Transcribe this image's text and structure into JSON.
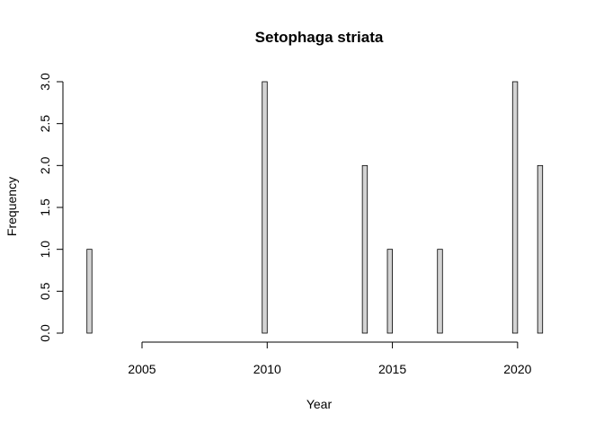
{
  "chart_data": {
    "type": "bar",
    "title": "Setophaga striata",
    "xlabel": "Year",
    "ylabel": "Frequency",
    "x": [
      2003,
      2010,
      2014,
      2015,
      2017,
      2020,
      2021
    ],
    "values": [
      1,
      3,
      2,
      1,
      1,
      3,
      2
    ],
    "bin_start": 2003,
    "bin_end": 2021,
    "bin_width": 0.2,
    "xlim": [
      2002.2,
      2021.8
    ],
    "ylim": [
      0,
      3
    ],
    "x_ticks": [
      "2005",
      "2010",
      "2015",
      "2020"
    ],
    "y_ticks": [
      "0.0",
      "0.5",
      "1.0",
      "1.5",
      "2.0",
      "2.5",
      "3.0"
    ],
    "bar_color": "#d3d3d3",
    "grid": false
  }
}
